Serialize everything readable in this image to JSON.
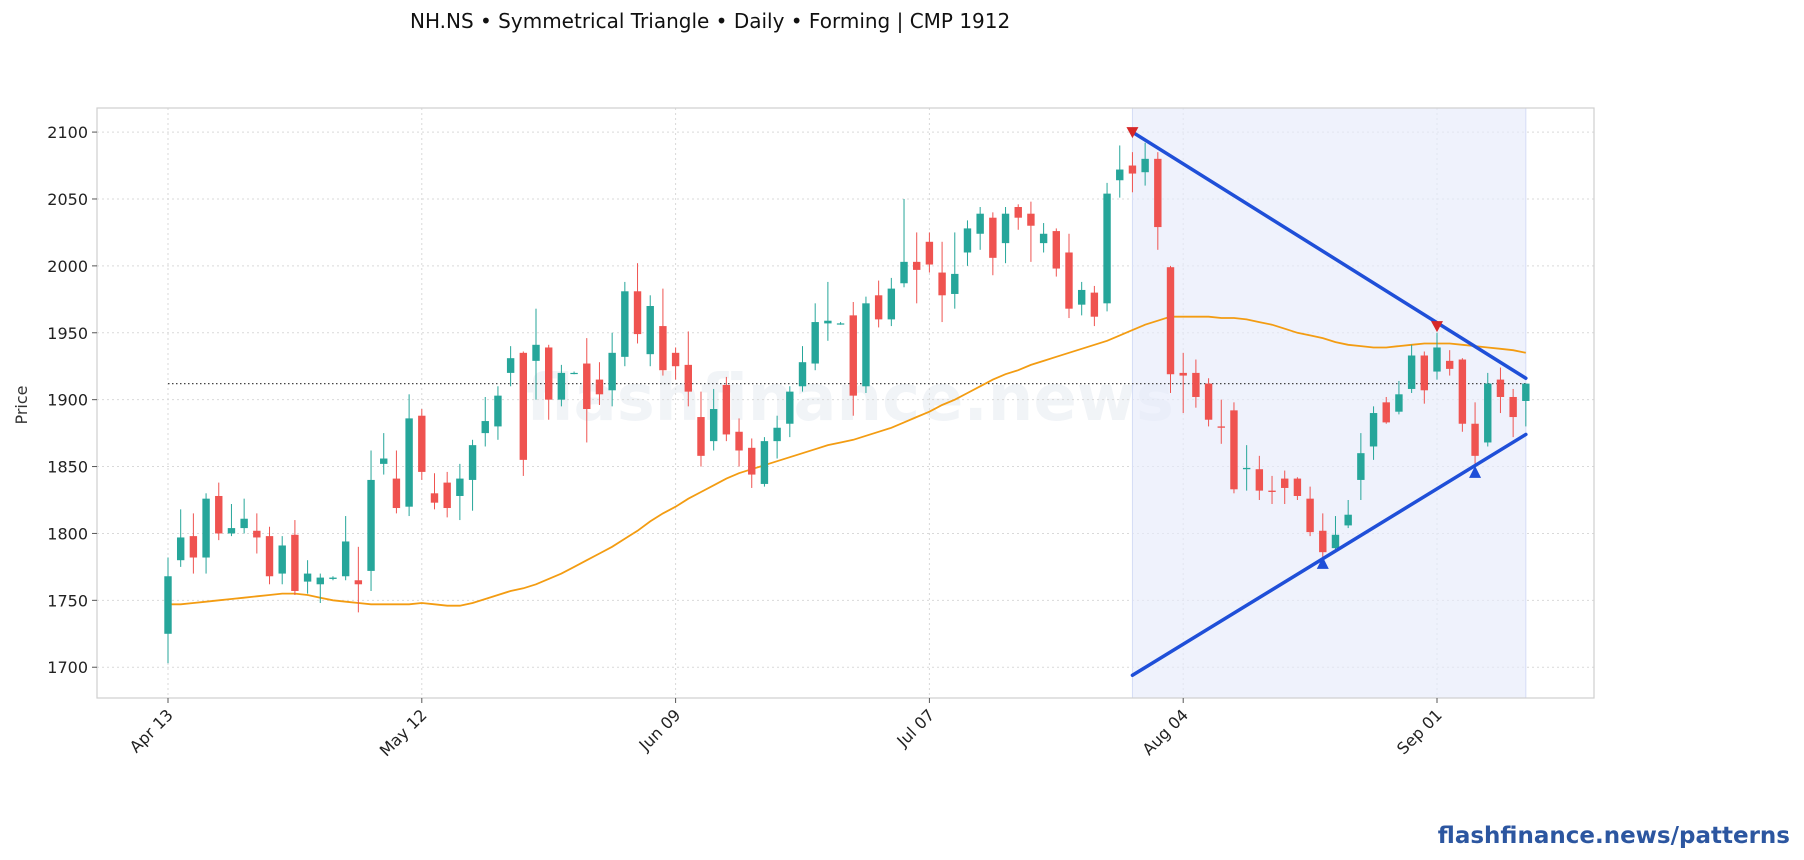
{
  "chart_data": {
    "type": "candlestick",
    "title": "NH.NS  •  Symmetrical Triangle  •  Daily  •  Forming  |  CMP 1912",
    "ylabel": "Price",
    "xlabel": "",
    "ylim": [
      1677,
      2118
    ],
    "yticks": [
      1700,
      1750,
      1800,
      1850,
      1900,
      1950,
      2000,
      2050,
      2100
    ],
    "xticks": [
      {
        "index": 0,
        "label": "Apr 13"
      },
      {
        "index": 20,
        "label": "May 12"
      },
      {
        "index": 40,
        "label": "Jun 09"
      },
      {
        "index": 60,
        "label": "Jul 07"
      },
      {
        "index": 80,
        "label": "Aug 04"
      },
      {
        "index": 100,
        "label": "Sep 01"
      }
    ],
    "grid": true,
    "cmp": 1912,
    "candles": [
      [
        1725,
        1782,
        1703,
        1768
      ],
      [
        1780,
        1818,
        1775,
        1797
      ],
      [
        1798,
        1815,
        1770,
        1782
      ],
      [
        1782,
        1830,
        1770,
        1826
      ],
      [
        1828,
        1838,
        1795,
        1800
      ],
      [
        1800,
        1822,
        1798,
        1804
      ],
      [
        1804,
        1826,
        1800,
        1811
      ],
      [
        1802,
        1815,
        1785,
        1797
      ],
      [
        1798,
        1805,
        1762,
        1768
      ],
      [
        1770,
        1798,
        1762,
        1791
      ],
      [
        1799,
        1810,
        1754,
        1757
      ],
      [
        1764,
        1780,
        1755,
        1770
      ],
      [
        1762,
        1770,
        1748,
        1767
      ],
      [
        1766,
        1768,
        1765,
        1767
      ],
      [
        1768,
        1813,
        1765,
        1794
      ],
      [
        1765,
        1790,
        1741,
        1762
      ],
      [
        1772,
        1862,
        1757,
        1840
      ],
      [
        1852,
        1875,
        1844,
        1856
      ],
      [
        1841,
        1862,
        1815,
        1819
      ],
      [
        1820,
        1904,
        1813,
        1886
      ],
      [
        1888,
        1893,
        1840,
        1846
      ],
      [
        1830,
        1845,
        1818,
        1823
      ],
      [
        1838,
        1846,
        1812,
        1819
      ],
      [
        1828,
        1852,
        1810,
        1841
      ],
      [
        1840,
        1870,
        1817,
        1866
      ],
      [
        1875,
        1902,
        1865,
        1884
      ],
      [
        1880,
        1910,
        1870,
        1903
      ],
      [
        1920,
        1940,
        1910,
        1931
      ],
      [
        1935,
        1936,
        1843,
        1855
      ],
      [
        1929,
        1968,
        1900,
        1941
      ],
      [
        1939,
        1941,
        1885,
        1900
      ],
      [
        1900,
        1926,
        1895,
        1920
      ],
      [
        1920,
        1921,
        1919,
        1920
      ],
      [
        1927,
        1946,
        1868,
        1893
      ],
      [
        1915,
        1928,
        1896,
        1904
      ],
      [
        1907,
        1950,
        1895,
        1935
      ],
      [
        1932,
        1988,
        1925,
        1981
      ],
      [
        1981,
        2002,
        1942,
        1949
      ],
      [
        1934,
        1978,
        1925,
        1970
      ],
      [
        1955,
        1983,
        1918,
        1922
      ],
      [
        1935,
        1939,
        1915,
        1925
      ],
      [
        1926,
        1951,
        1895,
        1906
      ],
      [
        1887,
        1906,
        1850,
        1858
      ],
      [
        1869,
        1908,
        1862,
        1893
      ],
      [
        1911,
        1917,
        1869,
        1874
      ],
      [
        1876,
        1886,
        1850,
        1862
      ],
      [
        1864,
        1871,
        1834,
        1844
      ],
      [
        1837,
        1872,
        1835,
        1869
      ],
      [
        1869,
        1888,
        1856,
        1879
      ],
      [
        1882,
        1910,
        1872,
        1906
      ],
      [
        1910,
        1940,
        1906,
        1928
      ],
      [
        1927,
        1972,
        1922,
        1958
      ],
      [
        1957,
        1988,
        1944,
        1959
      ],
      [
        1957,
        1958,
        1956,
        1957
      ],
      [
        1963,
        1973,
        1888,
        1903
      ],
      [
        1910,
        1977,
        1905,
        1972
      ],
      [
        1978,
        1989,
        1954,
        1960
      ],
      [
        1960,
        1991,
        1955,
        1983
      ],
      [
        1987,
        2050,
        1984,
        2003
      ],
      [
        2003,
        2025,
        1972,
        1997
      ],
      [
        2018,
        2025,
        1995,
        2001
      ],
      [
        1995,
        2018,
        1958,
        1978
      ],
      [
        1979,
        2025,
        1968,
        1994
      ],
      [
        2010,
        2034,
        2000,
        2028
      ],
      [
        2024,
        2044,
        2012,
        2039
      ],
      [
        2036,
        2040,
        1993,
        2006
      ],
      [
        2017,
        2044,
        2002,
        2039
      ],
      [
        2044,
        2046,
        2027,
        2036
      ],
      [
        2039,
        2048,
        2003,
        2030
      ],
      [
        2017,
        2032,
        2010,
        2024
      ],
      [
        2026,
        2028,
        1992,
        1998
      ],
      [
        2010,
        2024,
        1961,
        1968
      ],
      [
        1971,
        1988,
        1963,
        1982
      ],
      [
        1980,
        1985,
        1955,
        1962
      ],
      [
        1972,
        2062,
        1966,
        2054
      ],
      [
        2064,
        2090,
        2051,
        2072
      ],
      [
        2075,
        2085,
        2055,
        2069
      ],
      [
        2070,
        2092,
        2060,
        2080
      ],
      [
        2080,
        2085,
        2012,
        2029
      ],
      [
        1999,
        2000,
        1905,
        1919
      ],
      [
        1920,
        1935,
        1890,
        1918
      ],
      [
        1920,
        1930,
        1894,
        1902
      ],
      [
        1912,
        1916,
        1880,
        1885
      ],
      [
        1880,
        1900,
        1867,
        1879
      ],
      [
        1892,
        1898,
        1830,
        1833
      ],
      [
        1848,
        1866,
        1832,
        1849
      ],
      [
        1848,
        1858,
        1825,
        1832
      ],
      [
        1832,
        1843,
        1822,
        1831
      ],
      [
        1841,
        1847,
        1822,
        1834
      ],
      [
        1841,
        1842,
        1825,
        1828
      ],
      [
        1826,
        1835,
        1798,
        1801
      ],
      [
        1802,
        1815,
        1782,
        1786
      ],
      [
        1789,
        1813,
        1787,
        1799
      ],
      [
        1806,
        1825,
        1804,
        1814
      ],
      [
        1840,
        1875,
        1825,
        1860
      ],
      [
        1865,
        1895,
        1855,
        1890
      ],
      [
        1898,
        1902,
        1882,
        1883
      ],
      [
        1891,
        1914,
        1889,
        1904
      ],
      [
        1908,
        1941,
        1905,
        1933
      ],
      [
        1933,
        1936,
        1897,
        1907
      ],
      [
        1921,
        1950,
        1915,
        1939
      ],
      [
        1929,
        1937,
        1918,
        1923
      ],
      [
        1930,
        1931,
        1876,
        1882
      ],
      [
        1882,
        1898,
        1852,
        1858
      ],
      [
        1868,
        1920,
        1865,
        1912
      ],
      [
        1915,
        1924,
        1890,
        1902
      ],
      [
        1902,
        1908,
        1872,
        1887
      ],
      [
        1899,
        1912,
        1880,
        1912
      ]
    ],
    "sma": [
      1747,
      1747,
      1748,
      1749,
      1750,
      1751,
      1752,
      1753,
      1754,
      1755,
      1755,
      1754,
      1752,
      1750,
      1749,
      1748,
      1747,
      1747,
      1747,
      1747,
      1748,
      1747,
      1746,
      1746,
      1748,
      1751,
      1754,
      1757,
      1759,
      1762,
      1766,
      1770,
      1775,
      1780,
      1785,
      1790,
      1796,
      1802,
      1809,
      1815,
      1820,
      1826,
      1831,
      1836,
      1841,
      1845,
      1848,
      1851,
      1854,
      1857,
      1860,
      1863,
      1866,
      1868,
      1870,
      1873,
      1876,
      1879,
      1883,
      1887,
      1891,
      1896,
      1900,
      1905,
      1910,
      1915,
      1919,
      1922,
      1926,
      1929,
      1932,
      1935,
      1938,
      1941,
      1944,
      1948,
      1952,
      1956,
      1959,
      1962,
      1962,
      1962,
      1962,
      1961,
      1961,
      1960,
      1958,
      1956,
      1953,
      1950,
      1948,
      1946,
      1943,
      1941,
      1940,
      1939,
      1939,
      1940,
      1941,
      1942,
      1942,
      1942,
      1941,
      1940,
      1939,
      1938,
      1937,
      1935
    ],
    "zone": {
      "start": 76,
      "end": 107
    },
    "resistance_line": {
      "from": [
        76,
        2100
      ],
      "to": [
        107,
        1916
      ]
    },
    "support_line": {
      "from": [
        76,
        1694
      ],
      "to": [
        107,
        1874
      ]
    },
    "pivot_highs": [
      {
        "index": 76,
        "price": 2100
      },
      {
        "index": 100,
        "price": 1955
      }
    ],
    "pivot_lows": [
      {
        "index": 91,
        "price": 1778
      },
      {
        "index": 103,
        "price": 1846
      }
    ],
    "watermark": "flashfinance.news",
    "brand": "flashfinance.news/patterns",
    "colors": {
      "up": "#26a69a",
      "down": "#ef5350",
      "sma": "#f39c12",
      "trend": "#1f4fd8",
      "zone": "#e6ebfa",
      "pivot_high": "#d62728",
      "pivot_low": "#1f4fd8",
      "brand": "#2c56a0"
    }
  }
}
